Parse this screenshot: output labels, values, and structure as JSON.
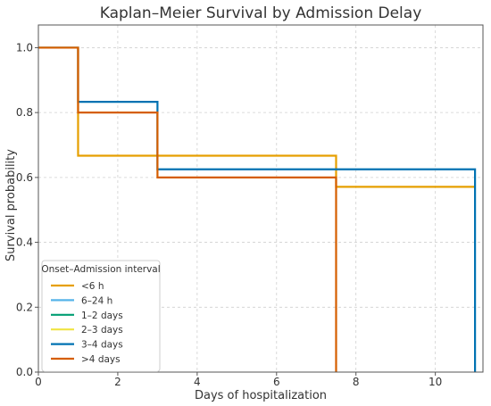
{
  "chart_data": {
    "type": "line",
    "step": "post",
    "title": "Kaplan–Meier Survival by Admission Delay",
    "xlabel": "Days of hospitalization",
    "ylabel": "Survival probability",
    "xlim": [
      0,
      11.2
    ],
    "ylim": [
      0,
      1.07
    ],
    "xticks": [
      0,
      2,
      4,
      6,
      8,
      10
    ],
    "yticks": [
      0.0,
      0.2,
      0.4,
      0.6,
      0.8,
      1.0
    ],
    "grid": true,
    "legend": {
      "title": "Onset–Admission interval",
      "placement": "lower-left"
    },
    "series": [
      {
        "name": "<6 h",
        "color": "#E69F00",
        "x": [
          0,
          1,
          7.5,
          11
        ],
        "y": [
          1.0,
          0.667,
          0.571,
          0.571
        ]
      },
      {
        "name": "6–24 h",
        "color": "#56B4E9",
        "x": [],
        "y": []
      },
      {
        "name": "1–2 days",
        "color": "#009E73",
        "x": [],
        "y": []
      },
      {
        "name": "2–3 days",
        "color": "#F0E442",
        "x": [],
        "y": []
      },
      {
        "name": "3–4 days",
        "color": "#0072B2",
        "x": [
          0,
          1,
          3,
          11,
          11
        ],
        "y": [
          1.0,
          0.833,
          0.625,
          0.625,
          0.0
        ]
      },
      {
        "name": ">4 days",
        "color": "#D55E00",
        "x": [
          0,
          1,
          3,
          7.5,
          7.5
        ],
        "y": [
          1.0,
          0.8,
          0.6,
          0.6,
          0.0
        ]
      }
    ]
  }
}
